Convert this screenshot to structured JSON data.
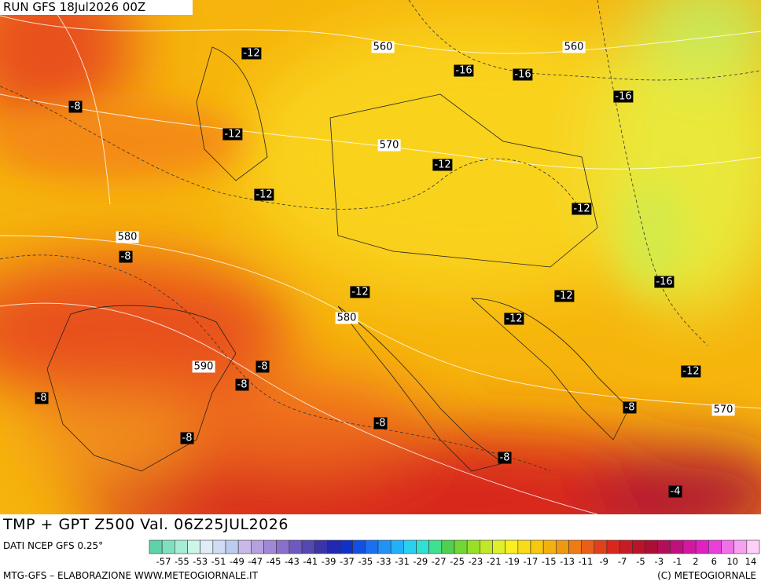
{
  "header": {
    "run": "RUN GFS 18Jul2026 00Z"
  },
  "title": "TMP + GPT Z500 Val. 06Z25JUL2026",
  "source": "DATI NCEP GFS 0.25°",
  "credit": "MTG-GFS – ELABORAZIONE WWW.METEOGIORNALE.IT",
  "copyright": "(C) METEOGIORNALE",
  "isotherm_labels": [
    "-12",
    "-16",
    "-16",
    "-16",
    "-8",
    "-12",
    "-12",
    "-12",
    "-12",
    "-8",
    "-16",
    "-12",
    "-12",
    "-12",
    "-8",
    "-12",
    "-8",
    "-8",
    "-8",
    "-8",
    "-8",
    "-8",
    "-4"
  ],
  "height_labels": [
    "560",
    "560",
    "570",
    "580",
    "580",
    "590",
    "570"
  ],
  "colorbar": {
    "labels": [
      -57,
      -55,
      -53,
      -51,
      -49,
      -47,
      -45,
      -43,
      -41,
      -39,
      -37,
      -35,
      -33,
      -31,
      -29,
      -27,
      -25,
      -23,
      -21,
      -19,
      -17,
      -15,
      -13,
      -11,
      -9,
      -7,
      -5,
      -3,
      -1,
      2,
      6,
      10,
      14
    ]
  }
}
